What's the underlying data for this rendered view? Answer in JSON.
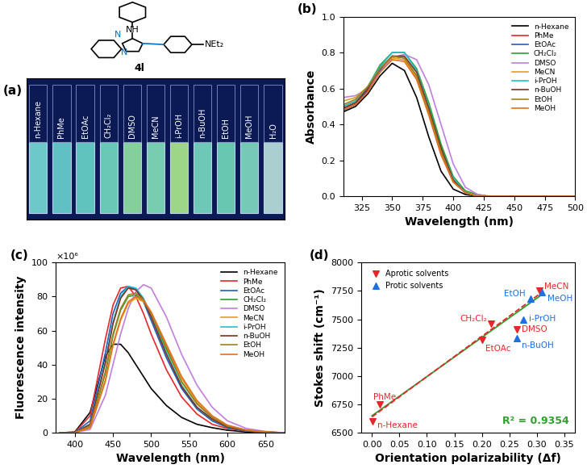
{
  "chart_data": [
    {
      "type": "structure_photo",
      "panel": "(a)",
      "structure_labels": [
        "NH",
        "N",
        "N",
        "NEt₂",
        "4l"
      ],
      "categories": [
        "n-Hexane",
        "PhMe",
        "EtOAc",
        "CH₂Cl₂",
        "DMSO",
        "MeCN",
        "i-PrOH",
        "n-BuOH",
        "EtOH",
        "MeOH",
        "H₂O"
      ],
      "colors": [
        "#7fe8e0",
        "#6fe0d8",
        "#70e2d0",
        "#7ae8c8",
        "#9cf0a8",
        "#8aeec0",
        "#b8f890",
        "#80e8c8",
        "#78e6c0",
        "#88eac8",
        "#c8f0e8"
      ]
    },
    {
      "type": "line",
      "panel": "(b)",
      "x_label": "Wavelength (nm)",
      "y_label": "Absorbance",
      "x": [
        310,
        320,
        330,
        340,
        350,
        360,
        370,
        380,
        390,
        400,
        410,
        420,
        430,
        450,
        475,
        500
      ],
      "xlim": [
        310,
        500
      ],
      "xticks": [
        325,
        350,
        375,
        400,
        425,
        450,
        475,
        500
      ],
      "ylim": [
        0,
        1.0
      ],
      "yticks": [
        {
          "value": 0,
          "label": "0.0"
        },
        {
          "value": 0.2,
          "label": "0.2"
        },
        {
          "value": 0.4,
          "label": "0.4"
        },
        {
          "value": 0.6,
          "label": "0.6"
        },
        {
          "value": 0.8,
          "label": "0.8"
        },
        {
          "value": 1.0,
          "label": "1.0"
        }
      ],
      "legend": "upper right",
      "series": [
        {
          "name": "n-Hexane",
          "color": "#000000",
          "values": [
            0.47,
            0.5,
            0.57,
            0.67,
            0.74,
            0.7,
            0.55,
            0.33,
            0.14,
            0.04,
            0.01,
            0.0,
            0,
            0,
            0,
            0
          ]
        },
        {
          "name": "PhMe",
          "color": "#e8262a",
          "values": [
            0.49,
            0.52,
            0.59,
            0.7,
            0.78,
            0.77,
            0.67,
            0.47,
            0.25,
            0.09,
            0.02,
            0.0,
            0,
            0,
            0,
            0
          ]
        },
        {
          "name": "EtOAc",
          "color": "#1f5fbf",
          "values": [
            0.48,
            0.51,
            0.59,
            0.7,
            0.78,
            0.77,
            0.66,
            0.46,
            0.24,
            0.08,
            0.02,
            0.0,
            0,
            0,
            0,
            0
          ]
        },
        {
          "name": "CH₂Cl₂",
          "color": "#2ca02c",
          "values": [
            0.5,
            0.53,
            0.61,
            0.73,
            0.8,
            0.8,
            0.71,
            0.52,
            0.29,
            0.11,
            0.03,
            0.01,
            0,
            0,
            0,
            0
          ]
        },
        {
          "name": "DMSO",
          "color": "#c07fe0",
          "values": [
            0.55,
            0.56,
            0.6,
            0.69,
            0.77,
            0.79,
            0.76,
            0.62,
            0.4,
            0.18,
            0.05,
            0.01,
            0,
            0,
            0,
            0
          ]
        },
        {
          "name": "MeCN",
          "color": "#e0a020",
          "values": [
            0.53,
            0.55,
            0.61,
            0.71,
            0.77,
            0.76,
            0.66,
            0.46,
            0.24,
            0.08,
            0.02,
            0.0,
            0,
            0,
            0,
            0
          ]
        },
        {
          "name": "i-PrOH",
          "color": "#20c0d0",
          "values": [
            0.5,
            0.53,
            0.61,
            0.72,
            0.8,
            0.8,
            0.7,
            0.5,
            0.27,
            0.1,
            0.02,
            0.0,
            0,
            0,
            0,
            0
          ]
        },
        {
          "name": "n-BuOH",
          "color": "#803020",
          "values": [
            0.49,
            0.52,
            0.6,
            0.71,
            0.78,
            0.78,
            0.69,
            0.49,
            0.27,
            0.09,
            0.02,
            0.0,
            0,
            0,
            0,
            0
          ]
        },
        {
          "name": "EtOH",
          "color": "#a08020",
          "values": [
            0.51,
            0.54,
            0.61,
            0.71,
            0.78,
            0.77,
            0.67,
            0.47,
            0.25,
            0.08,
            0.02,
            0.0,
            0,
            0,
            0,
            0
          ]
        },
        {
          "name": "MeOH",
          "color": "#e07020",
          "values": [
            0.48,
            0.51,
            0.58,
            0.69,
            0.76,
            0.75,
            0.65,
            0.45,
            0.23,
            0.08,
            0.02,
            0.0,
            0,
            0,
            0,
            0
          ]
        }
      ]
    },
    {
      "type": "line",
      "panel": "(c)",
      "x_label": "Wavelength (nm)",
      "y_label": "Fluorescence intensity",
      "y_scale_label": "×10⁶",
      "x": [
        380,
        400,
        420,
        440,
        450,
        460,
        470,
        480,
        490,
        500,
        520,
        540,
        560,
        580,
        600,
        625,
        650,
        675
      ],
      "xlim": [
        375,
        675
      ],
      "xticks": [
        400,
        450,
        500,
        550,
        600,
        650
      ],
      "ylim": [
        0,
        100
      ],
      "yticks": [
        0,
        20,
        40,
        60,
        80,
        100
      ],
      "legend": "upper right",
      "series": [
        {
          "name": "n-Hexane",
          "color": "#000000",
          "values": [
            0,
            0.5,
            12,
            45,
            52,
            52,
            47,
            40,
            33,
            26,
            16,
            9,
            5,
            3,
            1.5,
            0.5,
            0.2,
            0
          ]
        },
        {
          "name": "PhMe",
          "color": "#e8262a",
          "values": [
            0,
            0.3,
            10,
            55,
            75,
            85,
            86,
            80,
            70,
            58,
            37,
            21,
            11,
            5,
            2.5,
            1,
            0.3,
            0
          ]
        },
        {
          "name": "EtOAc",
          "color": "#1f5fbf",
          "values": [
            0,
            0.2,
            7,
            47,
            70,
            82,
            86,
            84,
            77,
            66,
            44,
            26,
            14,
            7,
            3,
            1,
            0.3,
            0
          ]
        },
        {
          "name": "CH₂Cl₂",
          "color": "#2ca02c",
          "values": [
            0,
            0.1,
            4,
            35,
            57,
            72,
            80,
            81,
            77,
            69,
            49,
            30,
            17,
            9,
            4,
            1.5,
            0.5,
            0
          ]
        },
        {
          "name": "DMSO",
          "color": "#c07fe0",
          "values": [
            0,
            0.1,
            2,
            22,
            40,
            58,
            73,
            83,
            87,
            85,
            68,
            46,
            28,
            15,
            7,
            2.5,
            0.8,
            0
          ]
        },
        {
          "name": "MeCN",
          "color": "#e0a020",
          "values": [
            0,
            0.1,
            3,
            30,
            51,
            66,
            76,
            79,
            77,
            70,
            51,
            32,
            18,
            9,
            4,
            1.5,
            0.5,
            0
          ]
        },
        {
          "name": "i-PrOH",
          "color": "#20c0d0",
          "values": [
            0,
            0.1,
            5,
            42,
            65,
            80,
            86,
            85,
            79,
            69,
            47,
            28,
            15,
            8,
            3.5,
            1.2,
            0.4,
            0
          ]
        },
        {
          "name": "n-BuOH",
          "color": "#803020",
          "values": [
            0,
            0.1,
            5,
            41,
            64,
            79,
            85,
            84,
            78,
            68,
            46,
            27,
            15,
            8,
            3.5,
            1.2,
            0.4,
            0
          ]
        },
        {
          "name": "EtOH",
          "color": "#a08020",
          "values": [
            0,
            0.1,
            4,
            36,
            58,
            73,
            81,
            82,
            78,
            70,
            50,
            30,
            17,
            9,
            4,
            1.5,
            0.5,
            0
          ]
        },
        {
          "name": "MeOH",
          "color": "#e07020",
          "values": [
            0,
            0.1,
            3,
            31,
            52,
            67,
            77,
            80,
            78,
            71,
            52,
            33,
            19,
            10,
            4.5,
            1.6,
            0.5,
            0
          ]
        }
      ]
    },
    {
      "type": "scatter",
      "panel": "(d)",
      "x_label": "Orientation polarizability (Δf)",
      "y_label": "Stokes shift (cm⁻¹)",
      "xlim": [
        -0.02,
        0.37
      ],
      "xticks": [
        {
          "value": 0,
          "label": "0.00"
        },
        {
          "value": 0.05,
          "label": "0.05"
        },
        {
          "value": 0.1,
          "label": "0.10"
        },
        {
          "value": 0.15,
          "label": "0.15"
        },
        {
          "value": 0.2,
          "label": "0.20"
        },
        {
          "value": 0.25,
          "label": "0.25"
        },
        {
          "value": 0.3,
          "label": "0.30"
        },
        {
          "value": 0.35,
          "label": "0.35"
        }
      ],
      "ylim": [
        6500,
        8000
      ],
      "yticks": [
        6500,
        6750,
        7000,
        7250,
        7500,
        7750,
        8000
      ],
      "legend": "upper left",
      "annotation": "R² = 0.9354",
      "annotation_color": "#2ca02c",
      "series": [
        {
          "name": "Aprotic solvents",
          "color": "#e8262a",
          "marker": "v",
          "labels": [
            "n-Hexane",
            "PhMe",
            "EtOAc",
            "CH₂Cl₂",
            "DMSO",
            "MeCN"
          ],
          "x": [
            0.001,
            0.014,
            0.2,
            0.217,
            0.263,
            0.305
          ],
          "values": [
            6600,
            6750,
            7320,
            7460,
            7410,
            7750
          ]
        },
        {
          "name": "Protic solvents",
          "color": "#1f6fe0",
          "marker": "^",
          "labels": [
            "EtOH",
            "MeOH",
            "i-PrOH",
            "n-BuOH"
          ],
          "x": [
            0.289,
            0.309,
            0.276,
            0.263
          ],
          "values": [
            7680,
            7740,
            7500,
            7330
          ]
        }
      ],
      "fits": [
        {
          "color": "#2ca02c",
          "line_style": "solid",
          "x": [
            0.0,
            0.31
          ],
          "values": [
            6650,
            7720
          ]
        },
        {
          "color": "#e8262a",
          "line_style": "dashed",
          "x": [
            0.0,
            0.31
          ],
          "values": [
            6640,
            7740
          ]
        }
      ]
    }
  ]
}
